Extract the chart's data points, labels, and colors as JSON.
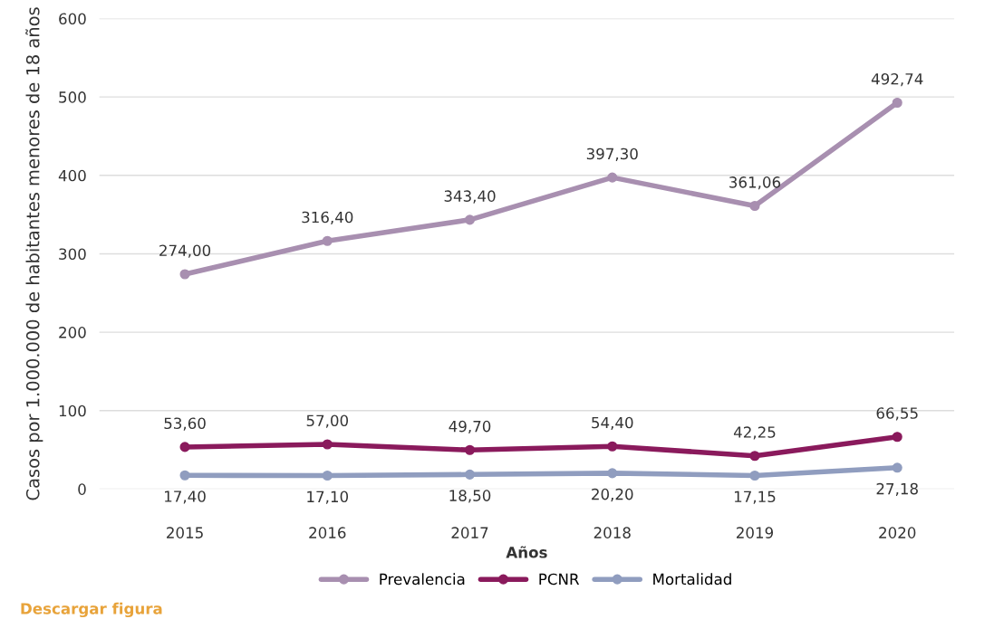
{
  "chart_data": {
    "type": "line",
    "xlabel": "Años",
    "ylabel": "Casos por 1.000.000 de habitantes menores de 18 años",
    "categories": [
      "2015",
      "2016",
      "2017",
      "2018",
      "2019",
      "2020"
    ],
    "series": [
      {
        "name": "Prevalencia",
        "color": "#a88fb0",
        "values": [
          274.0,
          316.4,
          343.4,
          397.3,
          361.06,
          492.74
        ],
        "value_labels": [
          "274,00",
          "316,40",
          "343,40",
          "397,30",
          "361,06",
          "492,74"
        ]
      },
      {
        "name": "PCNR",
        "color": "#8a1a5c",
        "values": [
          53.6,
          57.0,
          49.7,
          54.4,
          42.25,
          66.55
        ],
        "value_labels": [
          "53,60",
          "57,00",
          "49,70",
          "54,40",
          "42,25",
          "66,55"
        ]
      },
      {
        "name": "Mortalidad",
        "color": "#909dbf",
        "values": [
          17.4,
          17.1,
          18.5,
          20.2,
          17.15,
          27.18
        ],
        "value_labels": [
          "17,40",
          "17,10",
          "18,50",
          "20,20",
          "17,15",
          "27,18"
        ]
      }
    ],
    "ylim": [
      0,
      600
    ],
    "yticks": [
      0,
      100,
      200,
      300,
      400,
      500,
      600
    ],
    "grid": "y",
    "legend": "bottom",
    "marker": "circle",
    "line_style": "solid",
    "annotations": [
      "Descargar figura"
    ]
  }
}
